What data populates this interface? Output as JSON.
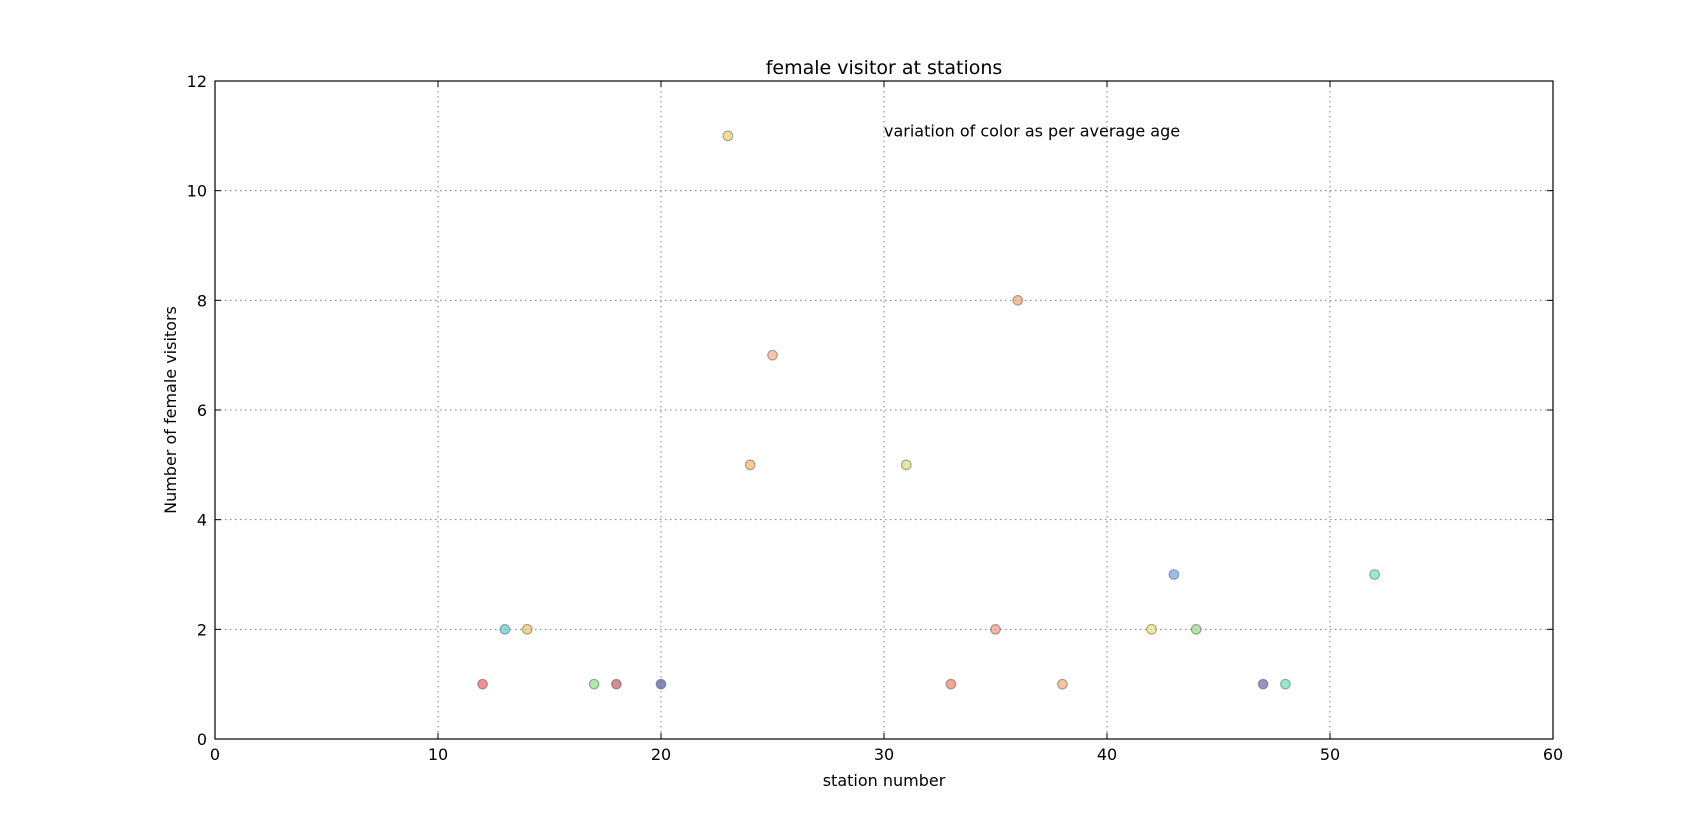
{
  "chart_data": {
    "type": "scatter",
    "title": "female visitor at stations",
    "xlabel": "station number",
    "ylabel": "Number of female visitors",
    "xlim": [
      0,
      60
    ],
    "ylim": [
      0,
      12
    ],
    "xticks": [
      0,
      10,
      20,
      30,
      40,
      50,
      60
    ],
    "yticks": [
      0,
      2,
      4,
      6,
      8,
      10,
      12
    ],
    "grid": true,
    "annotation": {
      "text": "variation of color as per average age",
      "x": 30,
      "y": 11.1
    },
    "points": [
      {
        "x": 12,
        "y": 1,
        "color": "#e8484a"
      },
      {
        "x": 13,
        "y": 2,
        "color": "#3ec7c2"
      },
      {
        "x": 14,
        "y": 2,
        "color": "#f0b94a"
      },
      {
        "x": 17,
        "y": 1,
        "color": "#74dd6a"
      },
      {
        "x": 18,
        "y": 1,
        "color": "#b4424e"
      },
      {
        "x": 20,
        "y": 1,
        "color": "#3a3aa0"
      },
      {
        "x": 23,
        "y": 11,
        "color": "#f2c84a"
      },
      {
        "x": 24,
        "y": 5,
        "color": "#f0a84a"
      },
      {
        "x": 25,
        "y": 7,
        "color": "#f09c6a"
      },
      {
        "x": 31,
        "y": 5,
        "color": "#d6d860"
      },
      {
        "x": 33,
        "y": 1,
        "color": "#f06a4a"
      },
      {
        "x": 35,
        "y": 2,
        "color": "#f0886a"
      },
      {
        "x": 36,
        "y": 8,
        "color": "#f09a5a"
      },
      {
        "x": 38,
        "y": 1,
        "color": "#f0a060"
      },
      {
        "x": 42,
        "y": 2,
        "color": "#e8e050"
      },
      {
        "x": 43,
        "y": 3,
        "color": "#5c90e8"
      },
      {
        "x": 44,
        "y": 2,
        "color": "#7ed86a"
      },
      {
        "x": 47,
        "y": 1,
        "color": "#5a4aa4"
      },
      {
        "x": 48,
        "y": 1,
        "color": "#50dcb4"
      },
      {
        "x": 52,
        "y": 3,
        "color": "#60dca0"
      }
    ]
  }
}
